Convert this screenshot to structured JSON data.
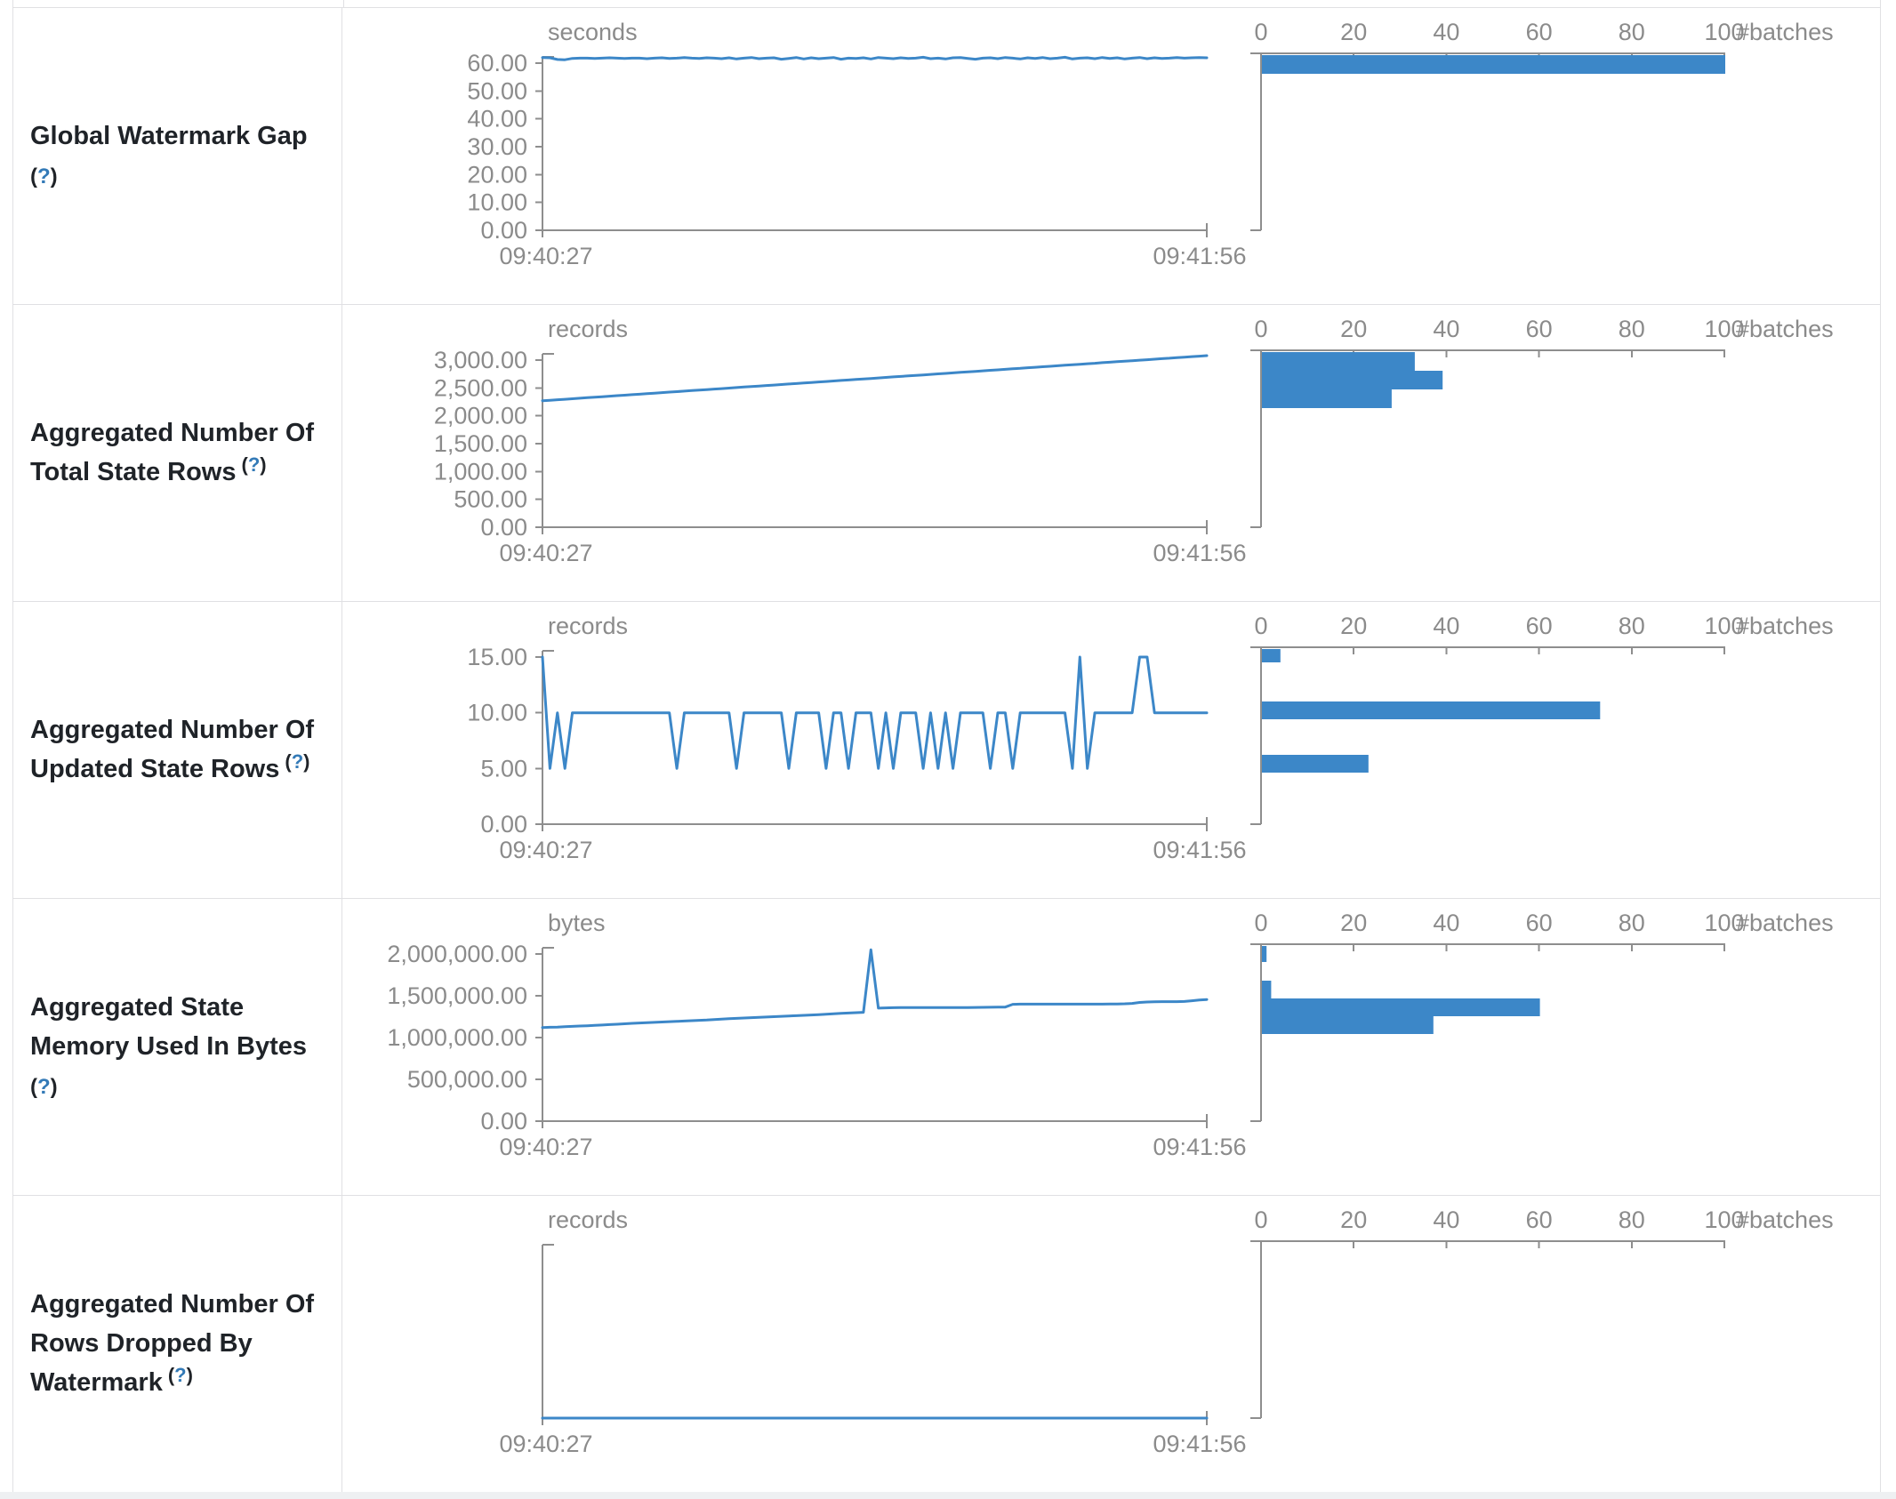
{
  "page": {
    "accent_blue": "#3c87c8",
    "axis_gray": "#8e8e8e",
    "text_gray": "#8b8b8b",
    "label_color": "#1f2328",
    "help_color": "#337ab7",
    "border_color": "#e0e0e3",
    "help_text": "(?)"
  },
  "chart_data": [
    {
      "id": "global-watermark-gap",
      "label_lines": [
        "Global Watermark Gap"
      ],
      "help_own_line": true,
      "timeline": {
        "type": "line",
        "unit": "seconds",
        "ylim": [
          0,
          60
        ],
        "y_ticks": [
          {
            "value": 60,
            "label": "60.00"
          },
          {
            "value": 50,
            "label": "50.00"
          },
          {
            "value": 40,
            "label": "40.00"
          },
          {
            "value": 30,
            "label": "30.00"
          },
          {
            "value": 20,
            "label": "20.00"
          },
          {
            "value": 10,
            "label": "10.00"
          },
          {
            "value": 0,
            "label": "0.00"
          }
        ],
        "x_tick_labels": [
          "09:40:27",
          "09:41:56"
        ],
        "values": [
          62.0,
          61.9,
          61.3,
          61.2,
          61.7,
          61.8,
          61.8,
          61.7,
          61.8,
          61.9,
          61.8,
          61.7,
          61.8,
          61.8,
          61.6,
          61.8,
          61.9,
          61.7,
          61.8,
          62.0,
          61.8,
          61.7,
          61.9,
          61.8,
          61.6,
          61.9,
          61.5,
          61.8,
          62.0,
          61.6,
          61.8,
          61.9,
          61.4,
          61.7,
          62.0,
          61.5,
          61.9,
          61.6,
          61.8,
          62.0,
          61.4,
          61.8,
          61.7,
          61.9,
          61.5,
          62.0,
          61.8,
          61.6,
          61.9,
          61.7,
          61.8,
          62.1,
          61.6,
          61.8,
          61.5,
          61.9,
          62.0,
          61.7,
          61.4,
          61.8,
          61.9,
          61.6,
          62.0,
          61.8,
          61.5,
          61.9,
          61.7,
          62.0,
          61.6,
          61.8,
          62.1,
          61.5,
          61.8,
          61.9,
          61.6,
          62.0,
          61.7,
          61.9,
          61.5,
          61.8,
          62.0,
          61.6,
          61.9,
          61.7,
          61.8,
          62.0,
          61.8,
          61.9,
          62.0,
          61.9
        ]
      },
      "histogram": {
        "type": "bar",
        "x_tick_labels": [
          "0",
          "20",
          "40",
          "60",
          "80",
          "100"
        ],
        "axis_label": "#batches",
        "xlim": [
          0,
          100
        ],
        "bars": [
          {
            "count": 100,
            "y": 53,
            "h": 21
          }
        ]
      }
    },
    {
      "id": "aggregated-number-of-total-state-rows",
      "label_lines": [
        "Aggregated Number Of",
        "Total State Rows"
      ],
      "help_own_line": false,
      "timeline": {
        "type": "line",
        "unit": "records",
        "ylim": [
          0,
          3000
        ],
        "y_ticks": [
          {
            "value": 3000,
            "label": "3,000.00"
          },
          {
            "value": 2500,
            "label": "2,500.00"
          },
          {
            "value": 2000,
            "label": "2,000.00"
          },
          {
            "value": 1500,
            "label": "1,500.00"
          },
          {
            "value": 1000,
            "label": "1,000.00"
          },
          {
            "value": 500,
            "label": "500.00"
          },
          {
            "value": 0,
            "label": "0.00"
          }
        ],
        "x_tick_labels": [
          "09:40:27",
          "09:41:56"
        ],
        "values": [
          2270,
          2279,
          2288,
          2297,
          2306,
          2315,
          2325,
          2334,
          2343,
          2352,
          2361,
          2370,
          2379,
          2388,
          2397,
          2407,
          2416,
          2425,
          2434,
          2443,
          2452,
          2461,
          2470,
          2479,
          2488,
          2498,
          2507,
          2516,
          2525,
          2534,
          2543,
          2552,
          2561,
          2570,
          2579,
          2589,
          2598,
          2607,
          2616,
          2625,
          2634,
          2643,
          2652,
          2661,
          2670,
          2680,
          2689,
          2698,
          2707,
          2716,
          2725,
          2734,
          2743,
          2752,
          2761,
          2771,
          2780,
          2789,
          2798,
          2807,
          2816,
          2825,
          2834,
          2843,
          2852,
          2862,
          2871,
          2880,
          2889,
          2898,
          2907,
          2916,
          2925,
          2934,
          2943,
          2953,
          2962,
          2971,
          2980,
          2989,
          2998,
          3007,
          3016,
          3025,
          3034,
          3044,
          3053,
          3062,
          3071,
          3080
        ]
      },
      "histogram": {
        "type": "bar",
        "x_tick_labels": [
          "0",
          "20",
          "40",
          "60",
          "80",
          "100"
        ],
        "axis_label": "#batches",
        "xlim": [
          0,
          100
        ],
        "bars": [
          {
            "count": 33,
            "y": 53,
            "h": 21
          },
          {
            "count": 39,
            "y": 74,
            "h": 21
          },
          {
            "count": 28,
            "y": 95,
            "h": 21
          }
        ]
      }
    },
    {
      "id": "aggregated-number-of-updated-state-rows",
      "label_lines": [
        "Aggregated Number Of",
        "Updated State Rows"
      ],
      "help_own_line": false,
      "timeline": {
        "type": "line",
        "unit": "records",
        "ylim": [
          0,
          15
        ],
        "y_ticks": [
          {
            "value": 15,
            "label": "15.00"
          },
          {
            "value": 10,
            "label": "10.00"
          },
          {
            "value": 5,
            "label": "5.00"
          },
          {
            "value": 0,
            "label": "0.00"
          }
        ],
        "x_tick_labels": [
          "09:40:27",
          "09:41:56"
        ],
        "values": [
          15,
          5,
          10,
          5,
          10,
          10,
          10,
          10,
          10,
          10,
          10,
          10,
          10,
          10,
          10,
          10,
          10,
          10,
          5,
          10,
          10,
          10,
          10,
          10,
          10,
          10,
          5,
          10,
          10,
          10,
          10,
          10,
          10,
          5,
          10,
          10,
          10,
          10,
          5,
          10,
          10,
          5,
          10,
          10,
          10,
          5,
          10,
          5,
          10,
          10,
          10,
          5,
          10,
          5,
          10,
          5,
          10,
          10,
          10,
          10,
          5,
          10,
          10,
          5,
          10,
          10,
          10,
          10,
          10,
          10,
          10,
          5,
          15,
          5,
          10,
          10,
          10,
          10,
          10,
          10,
          15,
          15,
          10,
          10,
          10,
          10,
          10,
          10,
          10,
          10
        ]
      },
      "histogram": {
        "type": "bar",
        "x_tick_labels": [
          "0",
          "20",
          "40",
          "60",
          "80",
          "100"
        ],
        "axis_label": "#batches",
        "xlim": [
          0,
          100
        ],
        "bars": [
          {
            "count": 4,
            "y": 53,
            "h": 15
          },
          {
            "count": 73,
            "y": 112,
            "h": 20
          },
          {
            "count": 23,
            "y": 172,
            "h": 20
          }
        ]
      }
    },
    {
      "id": "aggregated-state-memory-used-in-bytes",
      "label_lines": [
        "Aggregated State",
        "Memory Used In Bytes"
      ],
      "help_own_line": true,
      "timeline": {
        "type": "line",
        "unit": "bytes",
        "ylim": [
          0,
          2000000
        ],
        "y_ticks": [
          {
            "value": 2000000,
            "label": "2,000,000.00"
          },
          {
            "value": 1500000,
            "label": "1,500,000.00"
          },
          {
            "value": 1000000,
            "label": "1,000,000.00"
          },
          {
            "value": 500000,
            "label": "500,000.00"
          },
          {
            "value": 0,
            "label": "0.00"
          }
        ],
        "x_tick_labels": [
          "09:40:27",
          "09:41:56"
        ],
        "values": [
          1120000,
          1123000,
          1126000,
          1130000,
          1134000,
          1138000,
          1142000,
          1146000,
          1150000,
          1155000,
          1160000,
          1165000,
          1170000,
          1174000,
          1178000,
          1182000,
          1186000,
          1190000,
          1194000,
          1198000,
          1202000,
          1206000,
          1210000,
          1215000,
          1220000,
          1225000,
          1230000,
          1234000,
          1238000,
          1242000,
          1246000,
          1250000,
          1254000,
          1258000,
          1262000,
          1266000,
          1270000,
          1275000,
          1280000,
          1285000,
          1290000,
          1294000,
          1298000,
          1302000,
          2050000,
          1352000,
          1355000,
          1357000,
          1358000,
          1359000,
          1360000,
          1360000,
          1360000,
          1360000,
          1360000,
          1360000,
          1360000,
          1360000,
          1361000,
          1362000,
          1363000,
          1364000,
          1365000,
          1398000,
          1400000,
          1400000,
          1400000,
          1400000,
          1400000,
          1400000,
          1400000,
          1400000,
          1400000,
          1400000,
          1400000,
          1400000,
          1401000,
          1402000,
          1404000,
          1408000,
          1420000,
          1426000,
          1428000,
          1430000,
          1430000,
          1430000,
          1432000,
          1440000,
          1450000,
          1455000
        ]
      },
      "histogram": {
        "type": "bar",
        "x_tick_labels": [
          "0",
          "20",
          "40",
          "60",
          "80",
          "100"
        ],
        "axis_label": "#batches",
        "xlim": [
          0,
          100
        ],
        "bars": [
          {
            "count": 1,
            "y": 53,
            "h": 18
          },
          {
            "count": 2,
            "y": 92,
            "h": 20
          },
          {
            "count": 60,
            "y": 112,
            "h": 20
          },
          {
            "count": 37,
            "y": 132,
            "h": 20
          }
        ]
      }
    },
    {
      "id": "aggregated-number-of-rows-dropped-by-watermark",
      "label_lines": [
        "Aggregated Number Of",
        "Rows Dropped By",
        "Watermark"
      ],
      "help_own_line": false,
      "timeline": {
        "type": "line",
        "unit": "records",
        "ylim": [
          0,
          1
        ],
        "y_ticks": [],
        "x_tick_labels": [
          "09:40:27",
          "09:41:56"
        ],
        "values": [
          0,
          0,
          0,
          0,
          0,
          0,
          0,
          0,
          0,
          0,
          0,
          0,
          0,
          0,
          0,
          0,
          0,
          0,
          0,
          0,
          0,
          0,
          0,
          0,
          0,
          0,
          0,
          0,
          0,
          0
        ]
      },
      "histogram": {
        "type": "bar",
        "x_tick_labels": [
          "0",
          "20",
          "40",
          "60",
          "80",
          "100"
        ],
        "axis_label": "#batches",
        "xlim": [
          0,
          100
        ],
        "bars": []
      }
    }
  ]
}
